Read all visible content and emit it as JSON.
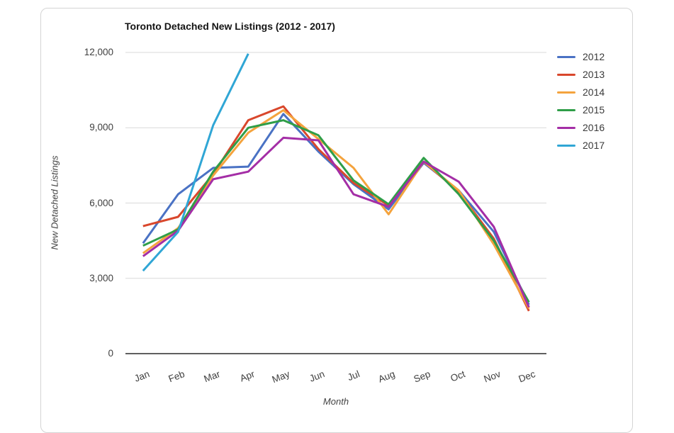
{
  "page": {
    "background": "#ffffff"
  },
  "card": {
    "background": "#ffffff",
    "border_color": "#d4d4d4"
  },
  "chart_data": {
    "type": "line",
    "title": "Toronto Detached New Listings (2012 - 2017)",
    "xlabel": "Month",
    "ylabel": "New Detached Listings",
    "categories": [
      "Jan",
      "Feb",
      "Mar",
      "Apr",
      "May",
      "Jun",
      "Jul",
      "Aug",
      "Sep",
      "Oct",
      "Nov",
      "Dec"
    ],
    "ylim": [
      0,
      12000
    ],
    "yticks": [
      0,
      3000,
      6000,
      9000,
      12000
    ],
    "ytick_labels": [
      "0",
      "3,000",
      "6,000",
      "9,000",
      "12,000"
    ],
    "grid": true,
    "legend_position": "right",
    "gridline_color": "#d9d9d9",
    "axis_color": "#4a4a4a",
    "series": [
      {
        "name": "2012",
        "color": "#4a72c4",
        "values": [
          4400,
          6350,
          7400,
          7450,
          9550,
          8050,
          6750,
          5750,
          7600,
          6500,
          4850,
          1950
        ]
      },
      {
        "name": "2013",
        "color": "#d9472c",
        "values": [
          5080,
          5450,
          7150,
          9300,
          9850,
          8150,
          6800,
          5900,
          7650,
          6450,
          4580,
          1700
        ]
      },
      {
        "name": "2014",
        "color": "#f4a33d",
        "values": [
          4000,
          5000,
          7100,
          8800,
          9700,
          8550,
          7400,
          5550,
          7650,
          6500,
          4350,
          1800
        ]
      },
      {
        "name": "2015",
        "color": "#2f9e48",
        "values": [
          4300,
          4950,
          7250,
          9000,
          9300,
          8700,
          6900,
          5950,
          7800,
          6350,
          4500,
          2050
        ]
      },
      {
        "name": "2016",
        "color": "#a42ea6",
        "values": [
          3880,
          4900,
          6950,
          7250,
          8600,
          8500,
          6350,
          5850,
          7650,
          6850,
          5050,
          1850
        ]
      },
      {
        "name": "2017",
        "color": "#30a6d5",
        "values": [
          3300,
          4850,
          9100,
          11950,
          null,
          null,
          null,
          null,
          null,
          null,
          null,
          null
        ]
      }
    ]
  }
}
